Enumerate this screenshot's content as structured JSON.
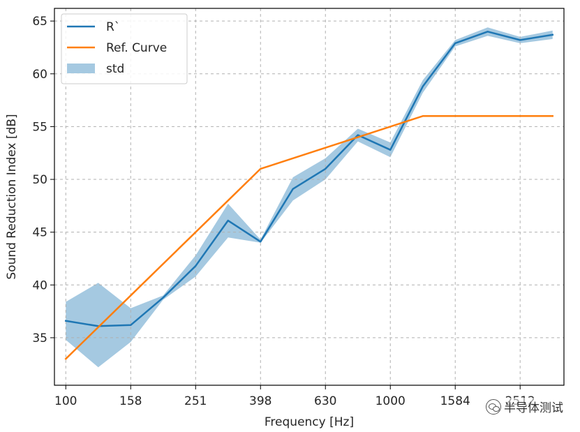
{
  "chart_data": {
    "type": "line",
    "xlabel": "Frequency [Hz]",
    "ylabel": "Sound Reduction Index [dB]",
    "x_positions": [
      0,
      1,
      2,
      3,
      4,
      5,
      6,
      7,
      8,
      9,
      10,
      11,
      12,
      13,
      14,
      15
    ],
    "x_tick_positions": [
      0,
      2,
      4,
      6,
      8,
      10,
      12,
      14
    ],
    "x_tick_labels": [
      "100",
      "158",
      "251",
      "398",
      "630",
      "1000",
      "1584",
      "2512"
    ],
    "xlim": [
      -0.35,
      15.35
    ],
    "ylim": [
      30.5,
      66.2
    ],
    "y_ticks": [
      35,
      40,
      45,
      50,
      55,
      60,
      65
    ],
    "grid": true,
    "legend_position": "upper-left",
    "series": [
      {
        "name": "R`",
        "kind": "line",
        "color": "#1f77b4",
        "values": [
          36.6,
          36.1,
          36.2,
          38.8,
          41.8,
          46.1,
          44.1,
          49.1,
          51.0,
          54.2,
          52.8,
          58.8,
          62.9,
          64.0,
          63.2,
          63.7
        ]
      },
      {
        "name": "Ref. Curve",
        "kind": "line",
        "color": "#ff7f0e",
        "values": [
          33.0,
          36.0,
          39.0,
          42.0,
          45.0,
          48.0,
          51.0,
          52.0,
          53.0,
          54.0,
          55.0,
          56.0,
          56.0,
          56.0,
          56.0,
          56.0
        ]
      },
      {
        "name": "std",
        "kind": "band",
        "color": "#1f77b4",
        "lower": [
          34.8,
          32.2,
          34.6,
          38.6,
          40.8,
          44.5,
          44.0,
          48.0,
          50.0,
          53.6,
          52.1,
          58.2,
          62.6,
          63.6,
          62.9,
          63.3
        ],
        "upper": [
          38.4,
          40.2,
          37.8,
          39.0,
          42.8,
          47.7,
          44.3,
          50.2,
          52.0,
          54.8,
          53.5,
          59.4,
          63.2,
          64.4,
          63.5,
          64.1
        ]
      }
    ]
  },
  "watermark": {
    "text": "半导体测试",
    "icon": "wechat-icon"
  }
}
